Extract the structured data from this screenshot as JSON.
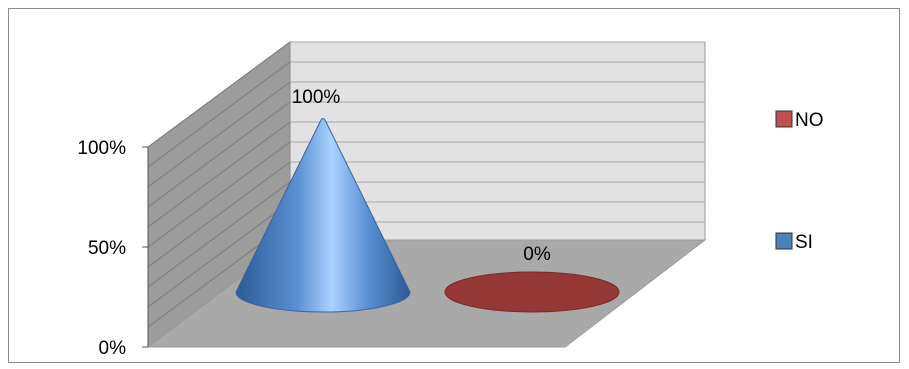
{
  "chart_data": {
    "type": "bar",
    "subtype": "3d-cone",
    "categories": [
      ""
    ],
    "series": [
      {
        "name": "SI",
        "values": [
          100
        ],
        "data_labels": [
          "100%"
        ],
        "color": "#4f81bd"
      },
      {
        "name": "NO",
        "values": [
          0
        ],
        "data_labels": [
          "0%"
        ],
        "color": "#c0504d"
      }
    ],
    "yticks": [
      "0%",
      "50%",
      "100%"
    ],
    "ylim": [
      0,
      100
    ],
    "grid": true,
    "legend": {
      "position": "right",
      "order": [
        "NO",
        "SI"
      ]
    },
    "title": "",
    "xlabel": "",
    "ylabel": ""
  }
}
